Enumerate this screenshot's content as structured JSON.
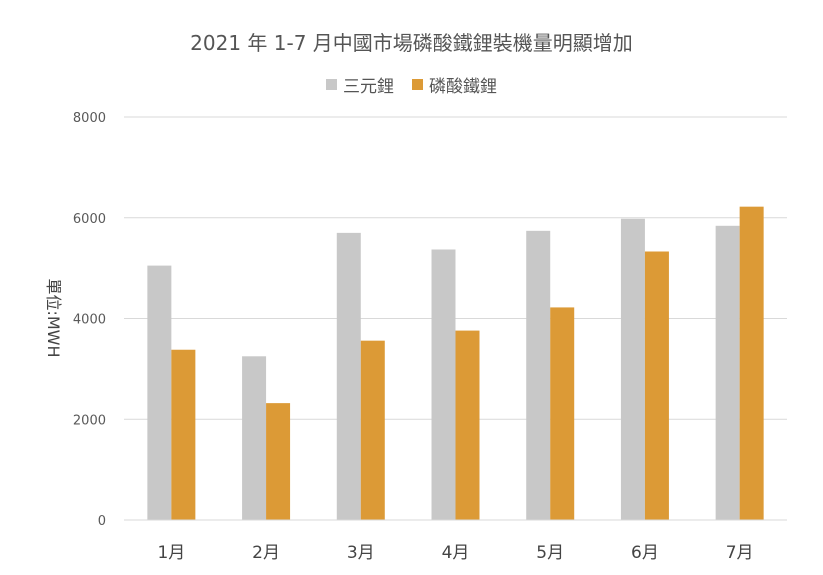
{
  "chart_data": {
    "type": "bar",
    "title": "2021 年 1-7 月中國市場磷酸鐵鋰裝機量明顯增加",
    "ylabel": "單位:MWH",
    "xlabel": "",
    "ylim": [
      0,
      8000
    ],
    "yticks": [
      0,
      2000,
      4000,
      6000,
      8000
    ],
    "grid": true,
    "legend_position": "top-center",
    "categories": [
      "1月",
      "2月",
      "3月",
      "4月",
      "5月",
      "6月",
      "7月"
    ],
    "series": [
      {
        "name": "三元鋰",
        "color": "#c8c8c8",
        "values": [
          5050,
          3250,
          5700,
          5370,
          5740,
          5980,
          5840
        ]
      },
      {
        "name": "磷酸鐵鋰",
        "color": "#dc9a36",
        "values": [
          3380,
          2320,
          3560,
          3760,
          4220,
          5330,
          6220
        ]
      }
    ]
  }
}
